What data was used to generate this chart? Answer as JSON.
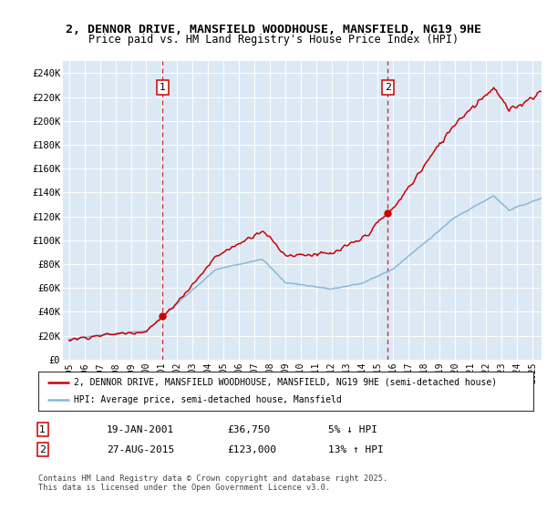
{
  "title_line1": "2, DENNOR DRIVE, MANSFIELD WOODHOUSE, MANSFIELD, NG19 9HE",
  "title_line2": "Price paid vs. HM Land Registry's House Price Index (HPI)",
  "ylim": [
    0,
    250000
  ],
  "xlim_start": 1994.6,
  "xlim_end": 2025.6,
  "bg_color": "#dce9f5",
  "grid_color": "#ffffff",
  "red_color": "#cc0000",
  "blue_color": "#88b8d8",
  "sale1_x": 2001.05,
  "sale1_y": 36750,
  "sale2_x": 2015.65,
  "sale2_y": 123000,
  "legend_line1": "2, DENNOR DRIVE, MANSFIELD WOODHOUSE, MANSFIELD, NG19 9HE (semi-detached house)",
  "legend_line2": "HPI: Average price, semi-detached house, Mansfield",
  "sale1_date": "19-JAN-2001",
  "sale1_price": "£36,750",
  "sale1_hpi": "5% ↓ HPI",
  "sale2_date": "27-AUG-2015",
  "sale2_price": "£123,000",
  "sale2_hpi": "13% ↑ HPI",
  "footer": "Contains HM Land Registry data © Crown copyright and database right 2025.\nThis data is licensed under the Open Government Licence v3.0."
}
